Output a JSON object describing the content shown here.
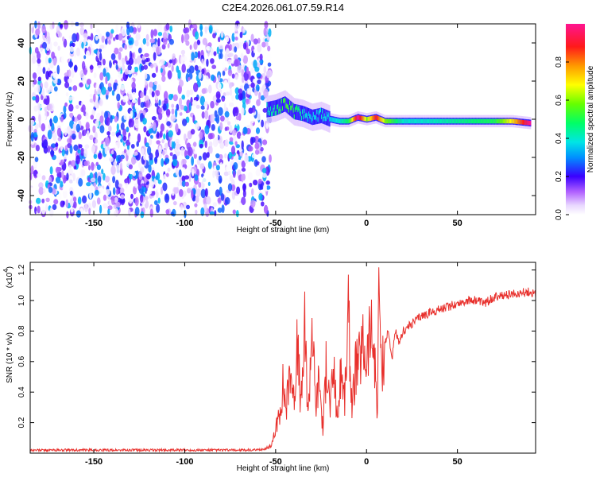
{
  "title": "C2E4.2026.061.07.59.R14",
  "chart_data": [
    {
      "type": "heatmap",
      "xlabel": "Height of straight line (km)",
      "ylabel": "Frequency (Hz)",
      "xlim": [
        -185,
        93
      ],
      "ylim": [
        -50,
        50
      ],
      "xticks": [
        -150,
        -100,
        -50,
        0,
        50
      ],
      "yticks": [
        -40,
        -20,
        0,
        20,
        40
      ],
      "colorbar": {
        "label": "Normalized spectral amplitude",
        "range": [
          0,
          1
        ],
        "ticks": [
          0.0,
          0.2,
          0.4,
          0.6,
          0.8
        ],
        "tick_labels": [
          "0.0",
          "0.2",
          "0.4",
          "0.6",
          "0.8"
        ]
      },
      "regions": [
        {
          "name": "noise",
          "x": [
            -185,
            -53
          ],
          "frequency": [
            -50,
            50
          ],
          "amplitude": [
            0.0,
            0.35
          ]
        },
        {
          "name": "transition",
          "x": [
            -53,
            -20
          ],
          "frequency": [
            -6,
            10
          ],
          "amplitude": [
            0.2,
            0.8
          ]
        },
        {
          "name": "signal",
          "x": [
            -20,
            93
          ],
          "frequency": [
            -4,
            2
          ],
          "amplitude": [
            0.3,
            1.0
          ]
        }
      ],
      "ridge": {
        "x": [
          -55,
          -50,
          -45,
          -40,
          -35,
          -30,
          -25,
          -20,
          -15,
          -10,
          -5,
          0,
          5,
          10,
          20,
          30,
          40,
          50,
          60,
          70,
          80,
          90
        ],
        "frequency": [
          5,
          6,
          8,
          4,
          3,
          1,
          2,
          0,
          -1,
          -1,
          1,
          0,
          1,
          -1,
          -1,
          -1,
          -1,
          -1,
          -1,
          -1,
          -1,
          -2
        ],
        "amplitude": [
          0.4,
          0.45,
          0.55,
          0.5,
          0.4,
          0.35,
          0.4,
          0.35,
          0.4,
          0.5,
          1.0,
          0.6,
          0.9,
          0.6,
          0.4,
          0.4,
          0.42,
          0.45,
          0.48,
          0.5,
          0.7,
          1.0
        ]
      }
    },
    {
      "type": "line",
      "xlabel": "Height of straight line (km)",
      "ylabel": "SNR (10 * v/v)",
      "scale_label": "(x10",
      "scale_exp": "4",
      "scale_close": ")",
      "xlim": [
        -185,
        93
      ],
      "ylim": [
        0,
        1.25
      ],
      "xticks": [
        -150,
        -100,
        -50,
        0,
        50
      ],
      "yticks": [
        0.2,
        0.4,
        0.6,
        0.8,
        1.0,
        1.2
      ],
      "ytick_labels": [
        "0.2",
        "0.4",
        "0.6",
        "0.8",
        "1.0",
        "1.2"
      ],
      "series": [
        {
          "color": "#e8302c",
          "x": [
            -185,
            -150,
            -100,
            -60,
            -55,
            -52,
            -50,
            -48,
            -46,
            -44,
            -42,
            -40,
            -38,
            -36,
            -34,
            -32,
            -30,
            -28,
            -26,
            -24,
            -22,
            -20,
            -18,
            -16,
            -14,
            -12,
            -10,
            -8,
            -6,
            -4,
            -2,
            0,
            2,
            4,
            6,
            7,
            8,
            10,
            12,
            14,
            16,
            18,
            20,
            25,
            30,
            35,
            40,
            45,
            50,
            55,
            60,
            65,
            70,
            75,
            80,
            85,
            90,
            93
          ],
          "y": [
            0.02,
            0.02,
            0.02,
            0.02,
            0.03,
            0.06,
            0.15,
            0.25,
            0.45,
            0.3,
            0.6,
            0.35,
            0.7,
            0.3,
            0.8,
            0.25,
            0.9,
            0.3,
            0.5,
            0.15,
            0.6,
            0.3,
            0.55,
            0.2,
            0.55,
            0.35,
            0.9,
            0.3,
            0.55,
            0.6,
            0.7,
            0.62,
            0.8,
            0.7,
            0.3,
            1.22,
            0.55,
            0.72,
            0.8,
            0.62,
            0.8,
            0.7,
            0.8,
            0.85,
            0.9,
            0.92,
            0.94,
            0.96,
            0.98,
            1.0,
            1.0,
            0.98,
            1.02,
            1.03,
            1.04,
            1.05,
            1.06,
            1.04
          ]
        }
      ]
    }
  ]
}
